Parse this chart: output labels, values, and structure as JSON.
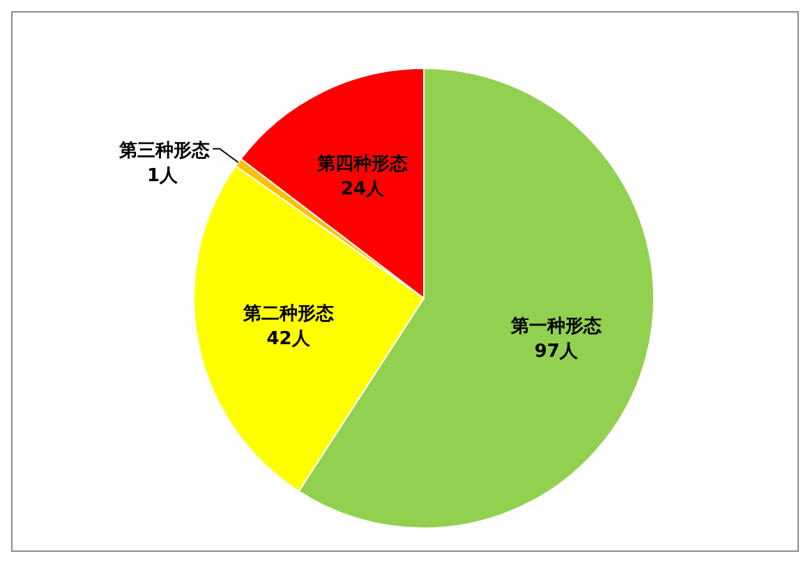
{
  "chart_data": {
    "type": "pie",
    "categories": [
      "第一种形态",
      "第二种形态",
      "第三种形态",
      "第四种形态"
    ],
    "values": [
      97,
      42,
      1,
      24
    ],
    "colors": [
      "#92d050",
      "#ffff00",
      "#ffc000",
      "#ff0000"
    ],
    "value_labels": [
      "97人",
      "42人",
      "1人",
      "24人"
    ]
  }
}
